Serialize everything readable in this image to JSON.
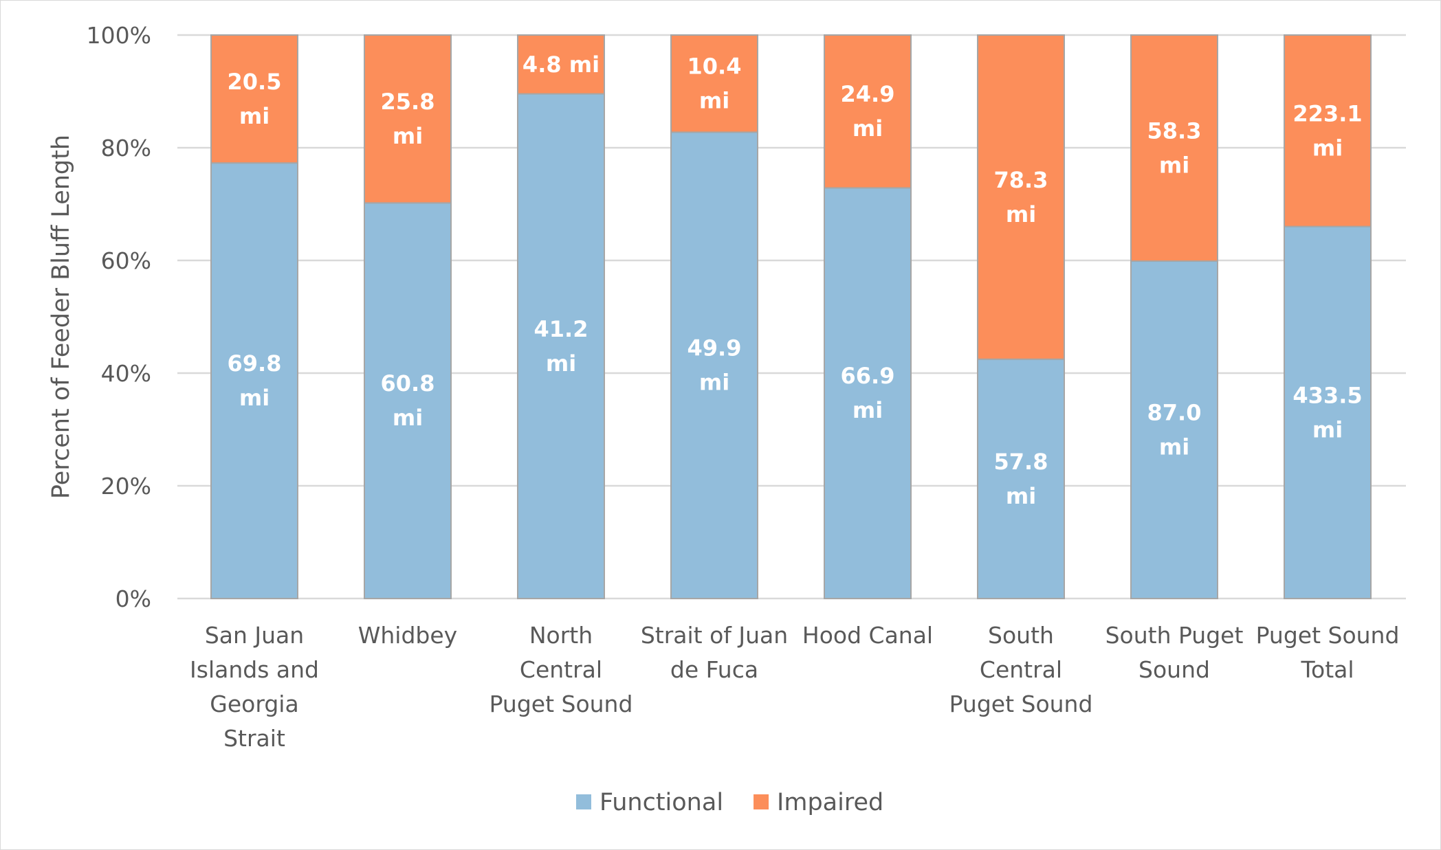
{
  "chart_data": {
    "type": "bar",
    "stacked": "percent",
    "ylabel": "Percent of Feeder Bluff Length",
    "ylim": [
      0,
      100
    ],
    "yticks": [
      "0%",
      "20%",
      "40%",
      "60%",
      "80%",
      "100%"
    ],
    "grid": true,
    "legend_position": "bottom",
    "categories": [
      [
        "San Juan",
        "Islands and",
        "Georgia",
        "Strait"
      ],
      [
        "Whidbey"
      ],
      [
        "North",
        "Central",
        "Puget Sound"
      ],
      [
        "Strait of Juan",
        "de Fuca"
      ],
      [
        "Hood Canal"
      ],
      [
        "South",
        "Central",
        "Puget Sound"
      ],
      [
        "South Puget",
        "Sound"
      ],
      [
        "Puget Sound",
        "Total"
      ]
    ],
    "series": [
      {
        "name": "Functional",
        "color": "#92BDDB",
        "values": [
          69.8,
          60.8,
          41.2,
          49.9,
          66.9,
          57.8,
          87.0,
          433.5
        ],
        "labels": [
          [
            "69.8",
            "mi"
          ],
          [
            "60.8",
            "mi"
          ],
          [
            "41.2",
            "mi"
          ],
          [
            "49.9",
            "mi"
          ],
          [
            "66.9",
            "mi"
          ],
          [
            "57.8",
            "mi"
          ],
          [
            "87.0",
            "mi"
          ],
          [
            "433.5",
            "mi"
          ]
        ]
      },
      {
        "name": "Impaired",
        "color": "#FC8E5A",
        "values": [
          20.5,
          25.8,
          4.8,
          10.4,
          24.9,
          78.3,
          58.3,
          223.1
        ],
        "labels": [
          [
            "20.5",
            "mi"
          ],
          [
            "25.8",
            "mi"
          ],
          [
            "4.8 mi"
          ],
          [
            "10.4",
            "mi"
          ],
          [
            "24.9",
            "mi"
          ],
          [
            "78.3",
            "mi"
          ],
          [
            "58.3",
            "mi"
          ],
          [
            "223.1",
            "mi"
          ]
        ]
      }
    ],
    "units": "mi"
  }
}
